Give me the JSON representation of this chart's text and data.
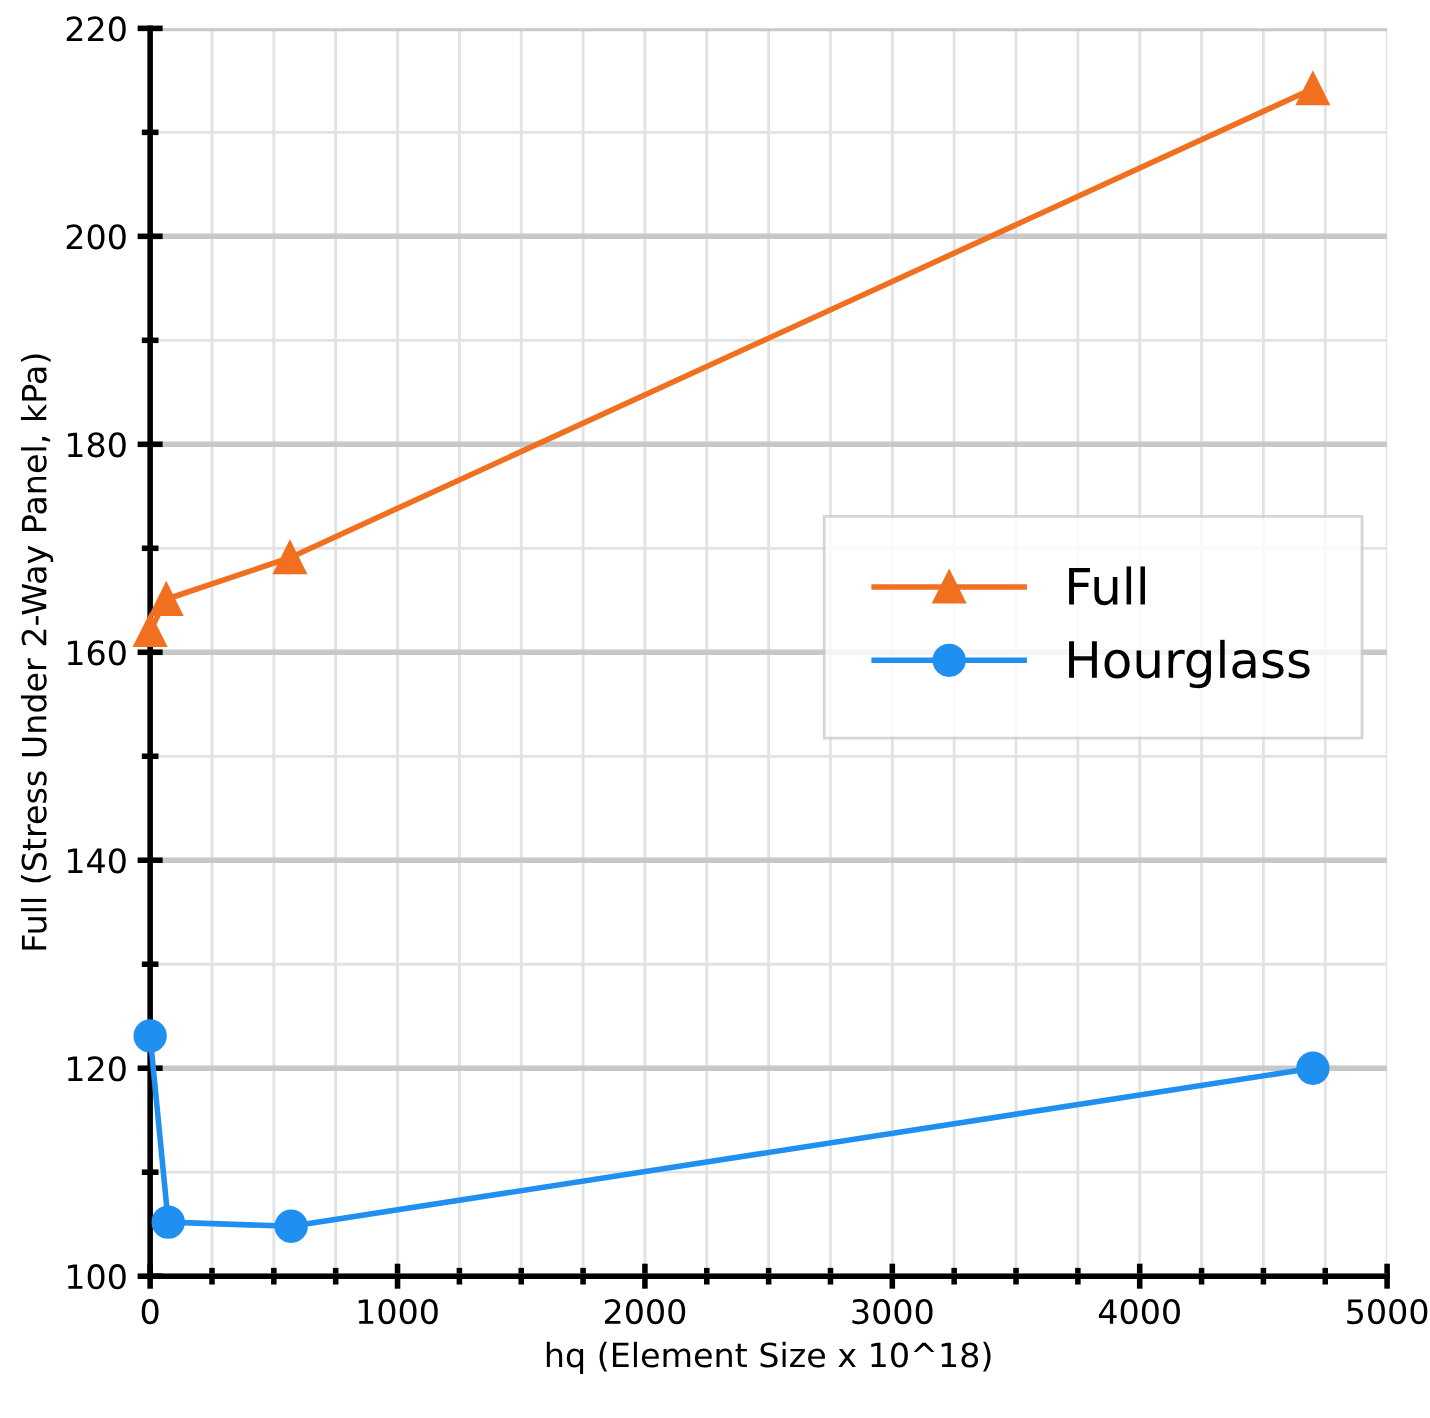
{
  "chart_data": {
    "type": "line",
    "xlabel": "hq (Element Size x 10^18)",
    "ylabel": "Full (Stress Under 2-Way Panel, kPa)",
    "xlim": [
      0,
      5000
    ],
    "xticks": [
      0,
      1000,
      2000,
      3000,
      4000,
      5000
    ],
    "ylim": [
      100,
      220
    ],
    "yticks": [
      100,
      120,
      140,
      160,
      180,
      200,
      220
    ],
    "grid": true,
    "legend": "right",
    "line_style": "solid",
    "series": [
      {
        "name": "Full",
        "color": "#f07020",
        "marker": "triangle",
        "x": [
          0,
          65,
          565,
          4700
        ],
        "values": [
          162.1,
          165.1,
          169.1,
          214.2
        ]
      },
      {
        "name": "Hourglass",
        "color": "#2090f0",
        "marker": "circle",
        "x": [
          0,
          73,
          570,
          4700
        ],
        "values": [
          123.1,
          105.2,
          104.8,
          120
        ]
      }
    ]
  }
}
